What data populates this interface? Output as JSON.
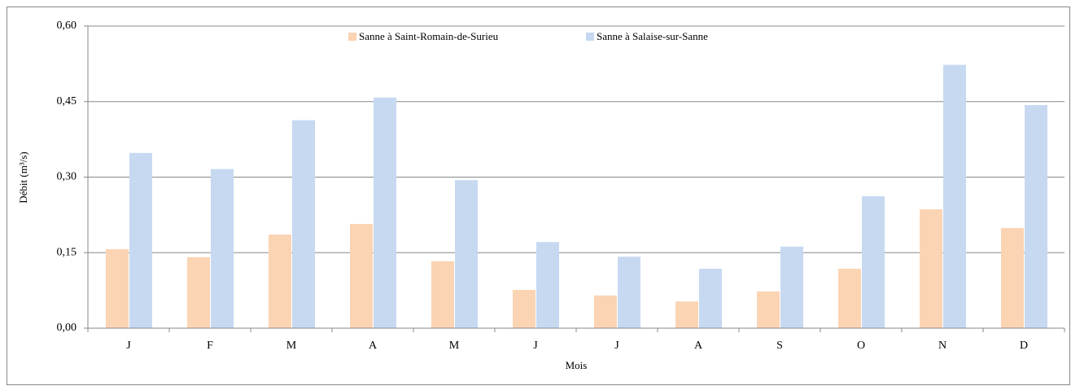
{
  "chart_data": {
    "type": "bar",
    "categories": [
      "J",
      "F",
      "M",
      "A",
      "M",
      "J",
      "J",
      "A",
      "S",
      "O",
      "N",
      "D"
    ],
    "series": [
      {
        "name": "Sanne à Saint-Romain-de-Surieu",
        "color": "#fbd4b4",
        "values": [
          0.157,
          0.141,
          0.186,
          0.207,
          0.133,
          0.076,
          0.065,
          0.053,
          0.073,
          0.118,
          0.236,
          0.199
        ]
      },
      {
        "name": "Sanne à Salaise-sur-Sanne",
        "color": "#c6d9f1",
        "values": [
          0.348,
          0.316,
          0.413,
          0.458,
          0.294,
          0.171,
          0.142,
          0.118,
          0.162,
          0.262,
          0.523,
          0.443
        ]
      }
    ],
    "y_label": "Débit (m³/s)",
    "x_label": "Mois",
    "ylim": [
      0,
      0.6
    ],
    "yticks": [
      {
        "value": 0,
        "label": "0,00"
      },
      {
        "value": 0.15,
        "label": "0,15"
      },
      {
        "value": 0.3,
        "label": "0,30"
      },
      {
        "value": 0.45,
        "label": "0,45"
      },
      {
        "value": 0.6,
        "label": "0,60"
      }
    ],
    "grid": true,
    "legend": "top"
  }
}
